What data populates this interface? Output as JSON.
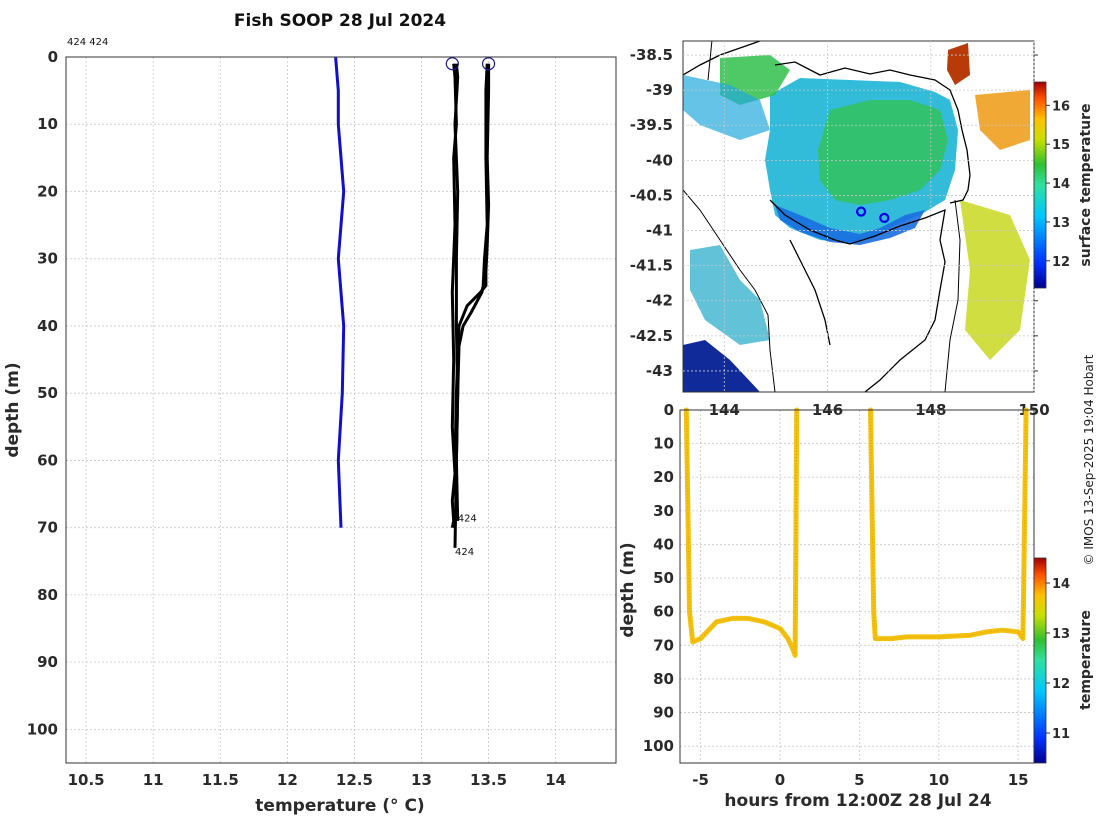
{
  "chart_data": [
    {
      "type": "line",
      "name": "temperature-depth profiles",
      "title": "Fish SOOP 28 Jul 2024",
      "xlabel": "temperature (° C)",
      "ylabel": "depth (m)",
      "xlim": [
        10.35,
        14.45
      ],
      "ylim": [
        105,
        0
      ],
      "xticks": [
        "10.5",
        "11",
        "11.5",
        "12",
        "12.5",
        "13",
        "13.5",
        "14"
      ],
      "yticks": [
        "0",
        "10",
        "20",
        "30",
        "40",
        "50",
        "60",
        "70",
        "80",
        "90",
        "100"
      ],
      "grid": true,
      "corner_labels": "424 424",
      "profile_labels": [
        {
          "text": "424",
          "temp": 13.27,
          "depth": 68.5
        },
        {
          "text": "424",
          "temp": 13.25,
          "depth": 73.5
        }
      ],
      "series": [
        {
          "name": "climatology",
          "color": "#1010cc",
          "temp": [
            12.36,
            12.38,
            12.38,
            12.42,
            12.38,
            12.42,
            12.41,
            12.38,
            12.4
          ],
          "depth": [
            0,
            5,
            10,
            20,
            30,
            40,
            50,
            60,
            70
          ]
        },
        {
          "name": "profile 1 down",
          "color": "#000000",
          "temp": [
            13.24,
            13.25,
            13.26,
            13.24,
            13.25,
            13.23,
            13.24,
            13.23,
            13.25,
            13.23,
            13.24,
            13.23
          ],
          "depth": [
            1,
            3,
            10,
            15,
            25,
            35,
            45,
            55,
            62,
            66,
            69,
            70
          ]
        },
        {
          "name": "profile 1 up",
          "color": "#000000",
          "temp": [
            13.26,
            13.27,
            13.25,
            13.27,
            13.26,
            13.26,
            13.27,
            13.26,
            13.27
          ],
          "depth": [
            1,
            3,
            10,
            20,
            30,
            40,
            50,
            60,
            69
          ]
        },
        {
          "name": "profile 2 down",
          "color": "#000000",
          "temp": [
            13.49,
            13.48,
            13.48,
            13.49,
            13.47,
            13.46,
            13.45,
            13.37,
            13.31,
            13.28,
            13.27,
            13.26,
            13.25
          ],
          "depth": [
            1,
            5,
            15,
            25,
            30,
            34,
            35,
            38,
            40,
            43,
            50,
            60,
            73
          ]
        },
        {
          "name": "profile 2 up",
          "color": "#000000",
          "temp": [
            13.5,
            13.5,
            13.49,
            13.5,
            13.49,
            13.48,
            13.48,
            13.44,
            13.34,
            13.28,
            13.26,
            13.25
          ],
          "depth": [
            1,
            5,
            15,
            22,
            28,
            32,
            34,
            35,
            37,
            40,
            50,
            60
          ]
        }
      ],
      "surface_markers": [
        {
          "temp": 13.23,
          "depth": 1
        },
        {
          "temp": 13.5,
          "depth": 1
        }
      ]
    },
    {
      "type": "heatmap",
      "name": "surface temperature map",
      "xticks": [
        "144",
        "146",
        "148",
        "150"
      ],
      "yticks": [
        "-38.5",
        "-39",
        "-39.5",
        "-40",
        "-40.5",
        "-41",
        "-41.5",
        "-42",
        "-42.5",
        "-43"
      ],
      "xlim": [
        143.2,
        150.0
      ],
      "ylim": [
        -43.3,
        -38.3
      ],
      "colorbar_label": "surface temperature",
      "colorbar_ticks": [
        "12",
        "13",
        "14",
        "15",
        "16"
      ],
      "colorbar_range": [
        11.3,
        16.6
      ],
      "profile_locations": [
        {
          "lon": 146.65,
          "lat": -40.73
        },
        {
          "lon": 147.1,
          "lat": -40.82
        }
      ]
    },
    {
      "type": "scatter",
      "name": "depth vs time",
      "xlabel": "hours from 12:00Z 28 Jul 24",
      "ylabel": "depth (m)",
      "xticks": [
        "-5",
        "0",
        "5",
        "10",
        "15"
      ],
      "yticks": [
        "0",
        "10",
        "20",
        "30",
        "40",
        "50",
        "60",
        "70",
        "80",
        "90",
        "100"
      ],
      "xlim": [
        -6.3,
        16.0
      ],
      "ylim": [
        105,
        0
      ],
      "colorbar_label": "temperature",
      "colorbar_ticks": [
        "11",
        "12",
        "13",
        "14"
      ],
      "colorbar_range": [
        10.4,
        14.5
      ],
      "color": "#f2c20e",
      "tracks": [
        {
          "hours": [
            -5.9,
            -5.8,
            -5.7,
            -5.5,
            -5.0,
            -4.0,
            -3.0,
            -2.0,
            -1.0,
            0.0,
            0.5,
            0.8,
            0.95,
            1.0,
            1.05
          ],
          "depth": [
            0,
            30,
            60,
            69,
            68,
            63,
            62,
            62,
            63,
            65,
            68,
            71,
            73,
            40,
            0
          ]
        },
        {
          "hours": [
            5.7,
            5.8,
            5.9,
            6.0,
            7.0,
            8.0,
            10.0,
            12.0,
            13.0,
            14.0,
            15.0,
            15.3,
            15.4,
            15.5
          ],
          "depth": [
            0,
            30,
            60,
            68,
            68,
            67.5,
            67.5,
            67,
            66,
            65.5,
            66,
            68,
            35,
            0
          ]
        }
      ]
    }
  ],
  "credit": "© IMOS 13-Sep-2025 19:04 Hobart"
}
